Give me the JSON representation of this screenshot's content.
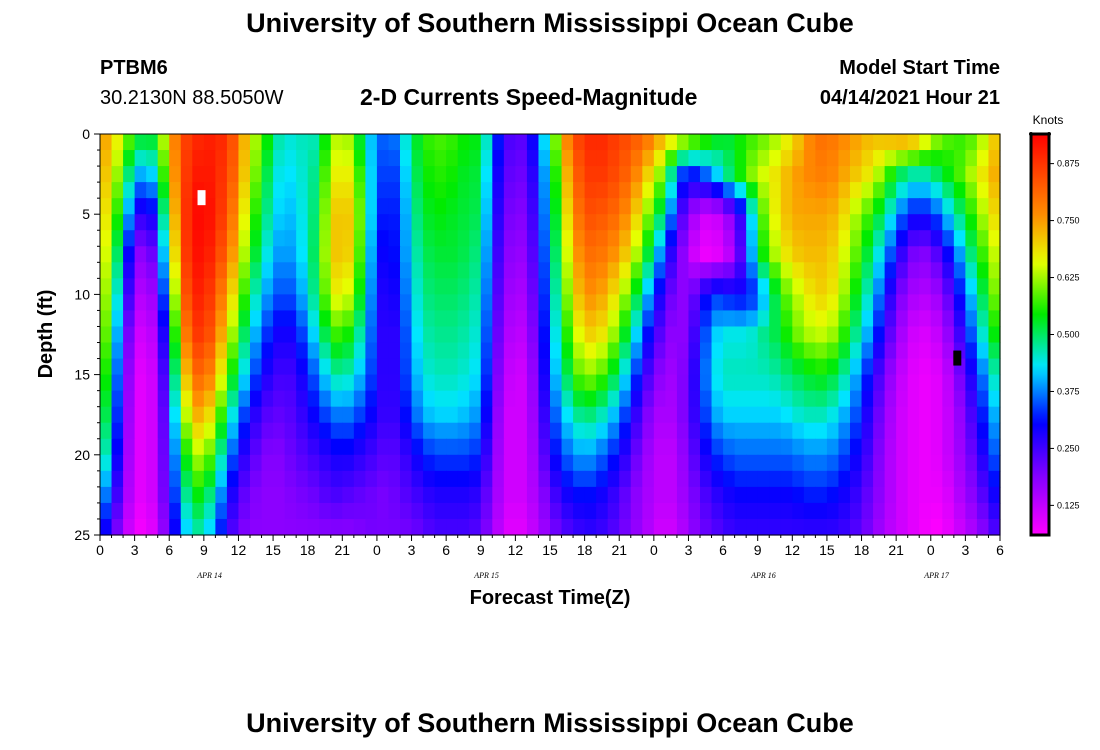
{
  "page": {
    "title": "University of Southern Mississippi Ocean Cube",
    "footer_title": "University of Southern Mississippi Ocean Cube",
    "station_id": "PTBM6",
    "station_coords": "30.2130N  88.5050W",
    "plot_subtitle": "2-D Currents Speed-Magnitude",
    "model_label": "Model Start Time",
    "model_time": "04/14/2021 Hour 21"
  },
  "chart_data": {
    "type": "heatmap",
    "title": "2-D Currents Speed-Magnitude",
    "xlabel": "Forecast Time(Z)",
    "ylabel": "Depth (ft)",
    "x_range_hours_from_apr14_00Z": [
      0,
      78
    ],
    "y_range_ft": [
      0,
      25
    ],
    "y_inverted": true,
    "x_tick_labels": [
      "0",
      "3",
      "6",
      "9",
      "12",
      "15",
      "18",
      "21",
      "0",
      "3",
      "6",
      "9",
      "12",
      "15",
      "18",
      "21",
      "0",
      "3",
      "6",
      "9",
      "12",
      "15",
      "18",
      "21",
      "0",
      "3",
      "6"
    ],
    "y_tick_labels": [
      "0",
      "5",
      "10",
      "15",
      "20",
      "25"
    ],
    "date_labels": [
      {
        "text": "APR 14",
        "hour": 9.5
      },
      {
        "text": "APR 15",
        "hour": 33.5
      },
      {
        "text": "APR 16",
        "hour": 57.5
      },
      {
        "text": "APR 17",
        "hour": 72.5
      }
    ],
    "colorbar": {
      "unit": "Knots",
      "min": 0.06,
      "max": 0.94,
      "tick_labels": [
        "0.875",
        "0.750",
        "0.625",
        "0.500",
        "0.375",
        "0.250",
        "0.125"
      ]
    },
    "markers": [
      {
        "kind": "max",
        "color": "#ffffff",
        "hour": 8.8,
        "depth_ft": 4
      },
      {
        "kind": "min",
        "color": "#000000",
        "hour": 74.3,
        "depth_ft": 14
      }
    ],
    "speed_field_knots": {
      "depths_ft": [
        0,
        2.5,
        5,
        7.5,
        10,
        12.5,
        15,
        17.5,
        20,
        22.5,
        25
      ],
      "hours": [
        0,
        1,
        2,
        3,
        4,
        5,
        6,
        7,
        8,
        9,
        10,
        11,
        12,
        13,
        14,
        15,
        16,
        17,
        18,
        19,
        20,
        21,
        22,
        23,
        24,
        25,
        26,
        27,
        28,
        29,
        30,
        31,
        32,
        33,
        34,
        35,
        36,
        37,
        38,
        39,
        40,
        41,
        42,
        43,
        44,
        45,
        46,
        47,
        48,
        49,
        50,
        51,
        52,
        53,
        54,
        55,
        56,
        57,
        58,
        59,
        60,
        61,
        62,
        63,
        64,
        65,
        66,
        67,
        68,
        69,
        70,
        71,
        72,
        73,
        74,
        75,
        76,
        77,
        78
      ],
      "rows": [
        [
          0.76,
          0.72,
          0.64,
          0.56,
          0.52,
          0.56,
          0.72,
          0.84,
          0.88,
          0.9,
          0.9,
          0.88,
          0.8,
          0.66,
          0.6,
          0.5,
          0.44,
          0.46,
          0.46,
          0.46,
          0.62,
          0.64,
          0.6,
          0.44,
          0.38,
          0.34,
          0.4,
          0.5,
          0.56,
          0.58,
          0.58,
          0.56,
          0.54,
          0.54,
          0.38,
          0.26,
          0.22,
          0.24,
          0.36,
          0.5,
          0.72,
          0.84,
          0.88,
          0.9,
          0.88,
          0.86,
          0.84,
          0.82,
          0.78,
          0.72,
          0.7,
          0.66,
          0.62,
          0.58,
          0.52,
          0.54,
          0.56,
          0.58,
          0.6,
          0.64,
          0.68,
          0.74,
          0.8,
          0.8,
          0.78,
          0.76,
          0.74,
          0.72,
          0.74,
          0.76,
          0.78,
          0.74,
          0.66,
          0.6,
          0.58,
          0.56,
          0.6,
          0.66,
          0.74
        ],
        [
          0.74,
          0.68,
          0.56,
          0.42,
          0.38,
          0.46,
          0.68,
          0.84,
          0.9,
          0.92,
          0.9,
          0.86,
          0.78,
          0.64,
          0.56,
          0.46,
          0.42,
          0.44,
          0.46,
          0.5,
          0.66,
          0.68,
          0.66,
          0.48,
          0.36,
          0.32,
          0.36,
          0.48,
          0.54,
          0.56,
          0.56,
          0.54,
          0.52,
          0.52,
          0.34,
          0.24,
          0.2,
          0.22,
          0.32,
          0.46,
          0.66,
          0.8,
          0.86,
          0.88,
          0.86,
          0.84,
          0.8,
          0.74,
          0.66,
          0.58,
          0.38,
          0.3,
          0.34,
          0.38,
          0.46,
          0.52,
          0.58,
          0.64,
          0.66,
          0.7,
          0.74,
          0.76,
          0.78,
          0.78,
          0.76,
          0.72,
          0.7,
          0.66,
          0.6,
          0.52,
          0.48,
          0.46,
          0.48,
          0.52,
          0.56,
          0.6,
          0.66,
          0.7,
          0.76
        ],
        [
          0.72,
          0.64,
          0.48,
          0.3,
          0.24,
          0.34,
          0.62,
          0.84,
          0.92,
          0.94,
          0.9,
          0.84,
          0.74,
          0.6,
          0.52,
          0.44,
          0.4,
          0.42,
          0.46,
          0.52,
          0.7,
          0.72,
          0.7,
          0.5,
          0.34,
          0.3,
          0.34,
          0.46,
          0.52,
          0.54,
          0.54,
          0.52,
          0.52,
          0.5,
          0.32,
          0.22,
          0.18,
          0.2,
          0.3,
          0.44,
          0.62,
          0.76,
          0.84,
          0.84,
          0.82,
          0.8,
          0.74,
          0.66,
          0.56,
          0.46,
          0.28,
          0.18,
          0.12,
          0.1,
          0.14,
          0.2,
          0.32,
          0.54,
          0.64,
          0.7,
          0.74,
          0.74,
          0.74,
          0.74,
          0.72,
          0.66,
          0.6,
          0.56,
          0.48,
          0.4,
          0.32,
          0.3,
          0.32,
          0.38,
          0.46,
          0.52,
          0.6,
          0.66,
          0.72
        ],
        [
          0.7,
          0.6,
          0.4,
          0.2,
          0.16,
          0.26,
          0.56,
          0.82,
          0.92,
          0.92,
          0.88,
          0.8,
          0.7,
          0.56,
          0.48,
          0.4,
          0.38,
          0.4,
          0.46,
          0.54,
          0.7,
          0.72,
          0.68,
          0.48,
          0.32,
          0.28,
          0.34,
          0.44,
          0.5,
          0.52,
          0.52,
          0.52,
          0.5,
          0.48,
          0.3,
          0.2,
          0.16,
          0.18,
          0.28,
          0.42,
          0.58,
          0.72,
          0.8,
          0.8,
          0.78,
          0.74,
          0.68,
          0.58,
          0.46,
          0.32,
          0.22,
          0.14,
          0.08,
          0.08,
          0.1,
          0.16,
          0.3,
          0.5,
          0.6,
          0.66,
          0.7,
          0.72,
          0.72,
          0.72,
          0.68,
          0.62,
          0.56,
          0.48,
          0.4,
          0.3,
          0.22,
          0.18,
          0.2,
          0.26,
          0.34,
          0.44,
          0.54,
          0.6,
          0.68
        ],
        [
          0.68,
          0.56,
          0.34,
          0.16,
          0.12,
          0.2,
          0.48,
          0.78,
          0.9,
          0.9,
          0.84,
          0.74,
          0.64,
          0.5,
          0.42,
          0.36,
          0.34,
          0.36,
          0.44,
          0.52,
          0.66,
          0.68,
          0.62,
          0.46,
          0.3,
          0.26,
          0.32,
          0.42,
          0.48,
          0.5,
          0.5,
          0.5,
          0.48,
          0.46,
          0.28,
          0.18,
          0.14,
          0.16,
          0.26,
          0.4,
          0.54,
          0.68,
          0.76,
          0.76,
          0.72,
          0.66,
          0.58,
          0.46,
          0.34,
          0.24,
          0.18,
          0.18,
          0.26,
          0.34,
          0.32,
          0.3,
          0.3,
          0.34,
          0.46,
          0.56,
          0.62,
          0.66,
          0.7,
          0.7,
          0.66,
          0.58,
          0.5,
          0.42,
          0.32,
          0.22,
          0.16,
          0.14,
          0.14,
          0.18,
          0.26,
          0.36,
          0.46,
          0.56,
          0.64
        ],
        [
          0.66,
          0.52,
          0.28,
          0.12,
          0.1,
          0.16,
          0.4,
          0.72,
          0.86,
          0.88,
          0.8,
          0.68,
          0.56,
          0.44,
          0.36,
          0.3,
          0.28,
          0.3,
          0.38,
          0.46,
          0.56,
          0.58,
          0.52,
          0.42,
          0.3,
          0.24,
          0.3,
          0.4,
          0.46,
          0.48,
          0.48,
          0.48,
          0.46,
          0.44,
          0.26,
          0.16,
          0.12,
          0.14,
          0.24,
          0.38,
          0.5,
          0.62,
          0.7,
          0.7,
          0.66,
          0.58,
          0.48,
          0.36,
          0.26,
          0.2,
          0.16,
          0.2,
          0.3,
          0.4,
          0.44,
          0.44,
          0.44,
          0.46,
          0.5,
          0.52,
          0.58,
          0.62,
          0.64,
          0.64,
          0.6,
          0.52,
          0.44,
          0.36,
          0.26,
          0.18,
          0.12,
          0.1,
          0.1,
          0.14,
          0.2,
          0.3,
          0.4,
          0.5,
          0.58
        ],
        [
          0.62,
          0.48,
          0.24,
          0.1,
          0.08,
          0.14,
          0.34,
          0.64,
          0.8,
          0.82,
          0.74,
          0.6,
          0.48,
          0.38,
          0.3,
          0.26,
          0.24,
          0.26,
          0.32,
          0.38,
          0.46,
          0.48,
          0.44,
          0.38,
          0.3,
          0.24,
          0.3,
          0.38,
          0.44,
          0.46,
          0.46,
          0.46,
          0.44,
          0.42,
          0.24,
          0.14,
          0.1,
          0.12,
          0.22,
          0.36,
          0.46,
          0.56,
          0.62,
          0.6,
          0.56,
          0.48,
          0.38,
          0.28,
          0.2,
          0.16,
          0.16,
          0.22,
          0.32,
          0.42,
          0.46,
          0.46,
          0.46,
          0.46,
          0.46,
          0.48,
          0.5,
          0.52,
          0.54,
          0.54,
          0.5,
          0.44,
          0.36,
          0.28,
          0.2,
          0.14,
          0.1,
          0.08,
          0.08,
          0.1,
          0.16,
          0.24,
          0.32,
          0.42,
          0.5
        ],
        [
          0.58,
          0.44,
          0.22,
          0.1,
          0.08,
          0.14,
          0.3,
          0.56,
          0.72,
          0.74,
          0.64,
          0.5,
          0.38,
          0.3,
          0.24,
          0.22,
          0.22,
          0.24,
          0.28,
          0.32,
          0.36,
          0.38,
          0.36,
          0.32,
          0.28,
          0.24,
          0.28,
          0.34,
          0.4,
          0.42,
          0.42,
          0.42,
          0.4,
          0.38,
          0.22,
          0.12,
          0.1,
          0.12,
          0.2,
          0.32,
          0.4,
          0.46,
          0.5,
          0.48,
          0.44,
          0.38,
          0.3,
          0.22,
          0.16,
          0.14,
          0.16,
          0.22,
          0.3,
          0.38,
          0.42,
          0.42,
          0.42,
          0.42,
          0.42,
          0.42,
          0.44,
          0.46,
          0.46,
          0.46,
          0.42,
          0.38,
          0.32,
          0.24,
          0.18,
          0.12,
          0.1,
          0.08,
          0.08,
          0.1,
          0.14,
          0.2,
          0.28,
          0.36,
          0.44
        ],
        [
          0.52,
          0.4,
          0.2,
          0.1,
          0.08,
          0.14,
          0.28,
          0.48,
          0.62,
          0.64,
          0.54,
          0.4,
          0.3,
          0.24,
          0.2,
          0.18,
          0.2,
          0.22,
          0.24,
          0.26,
          0.28,
          0.3,
          0.28,
          0.26,
          0.24,
          0.22,
          0.24,
          0.28,
          0.32,
          0.34,
          0.34,
          0.34,
          0.34,
          0.32,
          0.2,
          0.12,
          0.1,
          0.12,
          0.18,
          0.28,
          0.34,
          0.38,
          0.4,
          0.38,
          0.34,
          0.3,
          0.24,
          0.18,
          0.14,
          0.12,
          0.14,
          0.2,
          0.26,
          0.32,
          0.34,
          0.36,
          0.36,
          0.36,
          0.36,
          0.36,
          0.36,
          0.38,
          0.38,
          0.38,
          0.36,
          0.32,
          0.28,
          0.22,
          0.16,
          0.12,
          0.1,
          0.08,
          0.08,
          0.1,
          0.14,
          0.18,
          0.24,
          0.32,
          0.38
        ],
        [
          0.42,
          0.32,
          0.18,
          0.1,
          0.08,
          0.14,
          0.26,
          0.42,
          0.54,
          0.54,
          0.44,
          0.32,
          0.24,
          0.2,
          0.18,
          0.18,
          0.18,
          0.2,
          0.2,
          0.22,
          0.24,
          0.24,
          0.22,
          0.22,
          0.2,
          0.2,
          0.22,
          0.24,
          0.26,
          0.28,
          0.28,
          0.28,
          0.28,
          0.26,
          0.18,
          0.12,
          0.1,
          0.12,
          0.16,
          0.22,
          0.28,
          0.3,
          0.32,
          0.3,
          0.28,
          0.24,
          0.2,
          0.16,
          0.14,
          0.12,
          0.14,
          0.18,
          0.22,
          0.26,
          0.28,
          0.3,
          0.3,
          0.3,
          0.3,
          0.3,
          0.3,
          0.32,
          0.32,
          0.32,
          0.3,
          0.28,
          0.24,
          0.2,
          0.16,
          0.12,
          0.1,
          0.08,
          0.08,
          0.08,
          0.12,
          0.16,
          0.2,
          0.26,
          0.32
        ],
        [
          0.32,
          0.24,
          0.14,
          0.08,
          0.06,
          0.12,
          0.22,
          0.36,
          0.46,
          0.46,
          0.36,
          0.26,
          0.2,
          0.18,
          0.18,
          0.18,
          0.18,
          0.18,
          0.18,
          0.18,
          0.18,
          0.18,
          0.18,
          0.2,
          0.2,
          0.2,
          0.2,
          0.2,
          0.22,
          0.24,
          0.24,
          0.24,
          0.24,
          0.22,
          0.16,
          0.1,
          0.08,
          0.1,
          0.14,
          0.18,
          0.22,
          0.24,
          0.26,
          0.26,
          0.24,
          0.22,
          0.18,
          0.16,
          0.12,
          0.1,
          0.12,
          0.16,
          0.2,
          0.22,
          0.24,
          0.26,
          0.26,
          0.26,
          0.26,
          0.26,
          0.26,
          0.26,
          0.26,
          0.26,
          0.26,
          0.24,
          0.22,
          0.18,
          0.14,
          0.12,
          0.1,
          0.08,
          0.06,
          0.06,
          0.1,
          0.12,
          0.16,
          0.2,
          0.26
        ]
      ]
    }
  }
}
